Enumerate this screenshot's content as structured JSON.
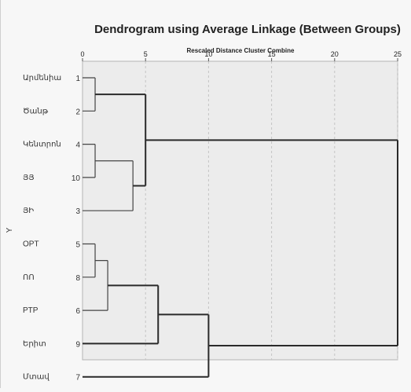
{
  "chart_data": {
    "type": "dendrogram",
    "title": "Dendrogram using Average Linkage (Between Groups)",
    "xlabel": "Rescaled Distance Cluster Combine",
    "ylabel": "Y",
    "xlim": [
      0,
      25
    ],
    "xticks": [
      "0",
      "5",
      "10",
      "15",
      "20",
      "25"
    ],
    "grid": true,
    "leaves": [
      {
        "label": "Արմենիա",
        "id": "1"
      },
      {
        "label": "Ծանթ",
        "id": "2"
      },
      {
        "label": "Կենտրոն",
        "id": "4"
      },
      {
        "label": "ՅՅ",
        "id": "10"
      },
      {
        "label": "ՅԻ",
        "id": "3"
      },
      {
        "label": "OPT",
        "id": "5"
      },
      {
        "label": "ՈՈ",
        "id": "8"
      },
      {
        "label": "PTP",
        "id": "6"
      },
      {
        "label": "Երիտ",
        "id": "9"
      },
      {
        "label": "Մտավ",
        "id": "7"
      }
    ],
    "merges": [
      {
        "a": "1",
        "b": "2",
        "distance": 1
      },
      {
        "a": "4",
        "b": "10",
        "distance": 1
      },
      {
        "a": "5",
        "b": "8",
        "distance": 1
      },
      {
        "a": "5-8",
        "b": "6",
        "distance": 2
      },
      {
        "a": "4-10",
        "b": "3",
        "distance": 4
      },
      {
        "a": "1-2",
        "b": "4-10-3",
        "distance": 5
      },
      {
        "a": "5-8-6",
        "b": "9",
        "distance": 6
      },
      {
        "a": "5-8-6-9",
        "b": "7",
        "distance": 10
      },
      {
        "a": "1-2-4-10-3",
        "b": "5-8-6-9-7",
        "distance": 25
      }
    ]
  }
}
